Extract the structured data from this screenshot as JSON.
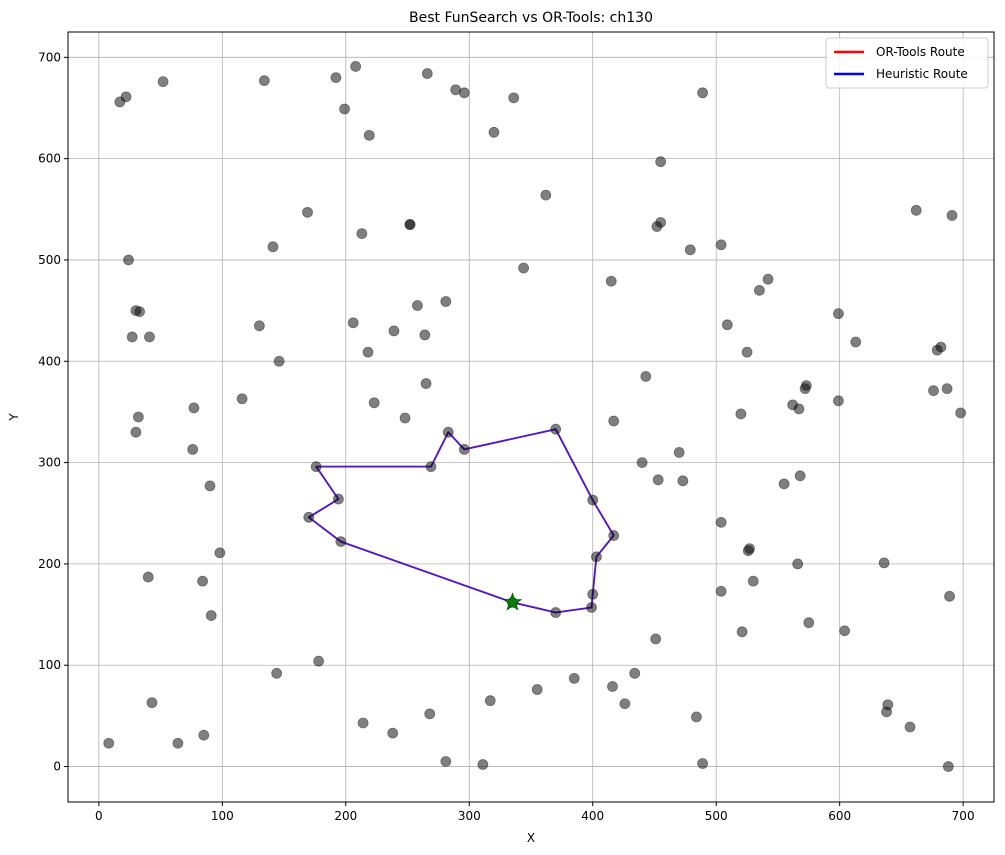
{
  "chart_data": {
    "type": "line",
    "title": "Best FunSearch vs OR-Tools: ch130",
    "xlabel": "X",
    "ylabel": "Y",
    "xlim": [
      -25,
      725
    ],
    "ylim": [
      -35,
      725
    ],
    "xticks": [
      0,
      100,
      200,
      300,
      400,
      500,
      600,
      700
    ],
    "yticks": [
      0,
      100,
      200,
      300,
      400,
      500,
      600,
      700
    ],
    "grid": true,
    "legend_position": "top-right",
    "start_marker": {
      "x": 335,
      "y": 162,
      "color": "#008000"
    },
    "series": [
      {
        "name": "OR-Tools Route",
        "color": "#ff0000",
        "points": [
          [
            335,
            162
          ],
          [
            370,
            152
          ],
          [
            399,
            157
          ],
          [
            400,
            170
          ],
          [
            403,
            207
          ],
          [
            417,
            228
          ],
          [
            400,
            263
          ],
          [
            370,
            333
          ],
          [
            296,
            313
          ],
          [
            283,
            330
          ],
          [
            269,
            296
          ],
          [
            176,
            296
          ],
          [
            194,
            264
          ],
          [
            170,
            246
          ],
          [
            196,
            222
          ],
          [
            335,
            162
          ]
        ]
      },
      {
        "name": "Heuristic Route",
        "color": "#0000ff",
        "points": [
          [
            335,
            162
          ],
          [
            370,
            152
          ],
          [
            399,
            157
          ],
          [
            400,
            170
          ],
          [
            403,
            207
          ],
          [
            417,
            228
          ],
          [
            400,
            263
          ],
          [
            370,
            333
          ],
          [
            296,
            313
          ],
          [
            283,
            330
          ],
          [
            269,
            296
          ],
          [
            176,
            296
          ],
          [
            194,
            264
          ],
          [
            170,
            246
          ],
          [
            196,
            222
          ],
          [
            335,
            162
          ]
        ]
      }
    ],
    "cities": [
      [
        335,
        162
      ],
      [
        370,
        152
      ],
      [
        399,
        157
      ],
      [
        400,
        170
      ],
      [
        403,
        207
      ],
      [
        417,
        228
      ],
      [
        400,
        263
      ],
      [
        370,
        333
      ],
      [
        417,
        341
      ],
      [
        443,
        385
      ],
      [
        473,
        282
      ],
      [
        470,
        310
      ],
      [
        453,
        283
      ],
      [
        440,
        300
      ],
      [
        504,
        241
      ],
      [
        526,
        213
      ],
      [
        527,
        215
      ],
      [
        568,
        287
      ],
      [
        555,
        279
      ],
      [
        567,
        353
      ],
      [
        520,
        348
      ],
      [
        525,
        409
      ],
      [
        509,
        436
      ],
      [
        535,
        470
      ],
      [
        542,
        481
      ],
      [
        504,
        515
      ],
      [
        479,
        510
      ],
      [
        452,
        533
      ],
      [
        455,
        537
      ],
      [
        455,
        597
      ],
      [
        489,
        665
      ],
      [
        415,
        479
      ],
      [
        362,
        564
      ],
      [
        344,
        492
      ],
      [
        320,
        626
      ],
      [
        336,
        660
      ],
      [
        296,
        665
      ],
      [
        289,
        668
      ],
      [
        266,
        684
      ],
      [
        252,
        535
      ],
      [
        252,
        535
      ],
      [
        213,
        526
      ],
      [
        169,
        547
      ],
      [
        141,
        513
      ],
      [
        130,
        435
      ],
      [
        146,
        400
      ],
      [
        116,
        363
      ],
      [
        77,
        354
      ],
      [
        76,
        313
      ],
      [
        90,
        277
      ],
      [
        98,
        211
      ],
      [
        84,
        183
      ],
      [
        91,
        149
      ],
      [
        40,
        187
      ],
      [
        43,
        63
      ],
      [
        8,
        23
      ],
      [
        64,
        23
      ],
      [
        85,
        31
      ],
      [
        144,
        92
      ],
      [
        178,
        104
      ],
      [
        214,
        43
      ],
      [
        238,
        33
      ],
      [
        268,
        52
      ],
      [
        281,
        5
      ],
      [
        311,
        2
      ],
      [
        317,
        65
      ],
      [
        355,
        76
      ],
      [
        385,
        87
      ],
      [
        416,
        79
      ],
      [
        426,
        62
      ],
      [
        434,
        92
      ],
      [
        451,
        126
      ],
      [
        484,
        49
      ],
      [
        489,
        3
      ],
      [
        688,
        0
      ],
      [
        639,
        61
      ],
      [
        638,
        54
      ],
      [
        657,
        39
      ],
      [
        689,
        168
      ],
      [
        636,
        201
      ],
      [
        604,
        134
      ],
      [
        575,
        142
      ],
      [
        521,
        133
      ],
      [
        504,
        173
      ],
      [
        530,
        183
      ],
      [
        566,
        200
      ],
      [
        572,
        373
      ],
      [
        573,
        376
      ],
      [
        562,
        357
      ],
      [
        599,
        361
      ],
      [
        676,
        371
      ],
      [
        687,
        373
      ],
      [
        698,
        349
      ],
      [
        679,
        411
      ],
      [
        682,
        414
      ],
      [
        613,
        419
      ],
      [
        599,
        447
      ],
      [
        662,
        549
      ],
      [
        691,
        544
      ],
      [
        208,
        691
      ],
      [
        199,
        649
      ],
      [
        219,
        623
      ],
      [
        192,
        680
      ],
      [
        134,
        677
      ],
      [
        52,
        676
      ],
      [
        22,
        661
      ],
      [
        17,
        656
      ],
      [
        24,
        500
      ],
      [
        30,
        450
      ],
      [
        33,
        449
      ],
      [
        27,
        424
      ],
      [
        41,
        424
      ],
      [
        32,
        345
      ],
      [
        30,
        330
      ],
      [
        206,
        438
      ],
      [
        239,
        430
      ],
      [
        264,
        426
      ],
      [
        258,
        455
      ],
      [
        281,
        459
      ],
      [
        218,
        409
      ],
      [
        223,
        359
      ],
      [
        248,
        344
      ],
      [
        265,
        378
      ],
      [
        296,
        313
      ],
      [
        283,
        330
      ],
      [
        269,
        296
      ],
      [
        176,
        296
      ],
      [
        194,
        264
      ],
      [
        170,
        246
      ],
      [
        196,
        222
      ]
    ]
  }
}
